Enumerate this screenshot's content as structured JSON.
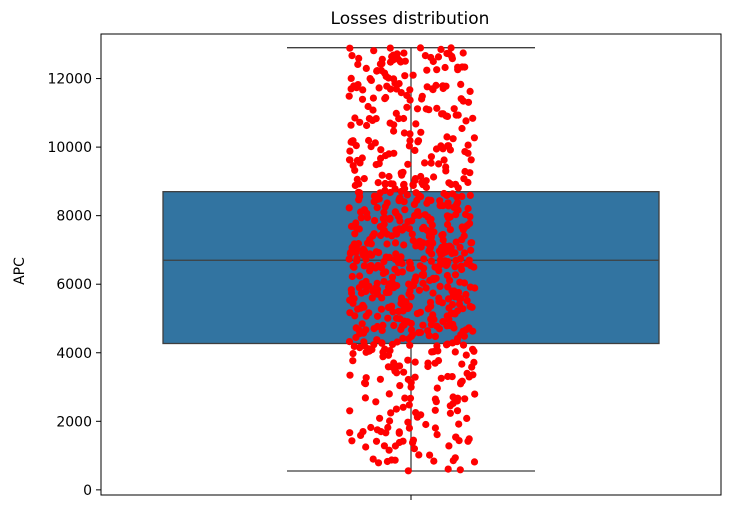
{
  "chart_data": {
    "type": "box",
    "title": "Losses distribution",
    "xlabel": "",
    "ylabel": "APC",
    "ylim": [
      -150,
      13300
    ],
    "yticks": [
      0,
      2000,
      4000,
      6000,
      8000,
      10000,
      12000
    ],
    "ytick_labels": [
      "0",
      "2000",
      "4000",
      "6000",
      "8000",
      "10000",
      "12000"
    ],
    "grid": false,
    "legend": "none",
    "box": {
      "whisker_low": 550,
      "q1": 4270,
      "median": 6700,
      "q3": 8700,
      "whisker_high": 12900,
      "color": "#3274a1",
      "edge_color": "#3f3f3f"
    },
    "strip": {
      "color": "#ff0000",
      "n_points": 750,
      "y_min": 550,
      "y_max": 12900,
      "density": [
        {
          "range": [
            500,
            1000
          ],
          "count": 12
        },
        {
          "range": [
            1000,
            2000
          ],
          "count": 35
        },
        {
          "range": [
            2000,
            3000
          ],
          "count": 30
        },
        {
          "range": [
            3000,
            4000
          ],
          "count": 40
        },
        {
          "range": [
            4000,
            5000
          ],
          "count": 80
        },
        {
          "range": [
            5000,
            6000
          ],
          "count": 95
        },
        {
          "range": [
            6000,
            7000
          ],
          "count": 100
        },
        {
          "range": [
            7000,
            8000
          ],
          "count": 95
        },
        {
          "range": [
            8000,
            9000
          ],
          "count": 80
        },
        {
          "range": [
            9000,
            10000
          ],
          "count": 45
        },
        {
          "range": [
            10000,
            11000
          ],
          "count": 45
        },
        {
          "range": [
            11000,
            12000
          ],
          "count": 45
        },
        {
          "range": [
            12000,
            12900
          ],
          "count": 48
        }
      ]
    }
  }
}
